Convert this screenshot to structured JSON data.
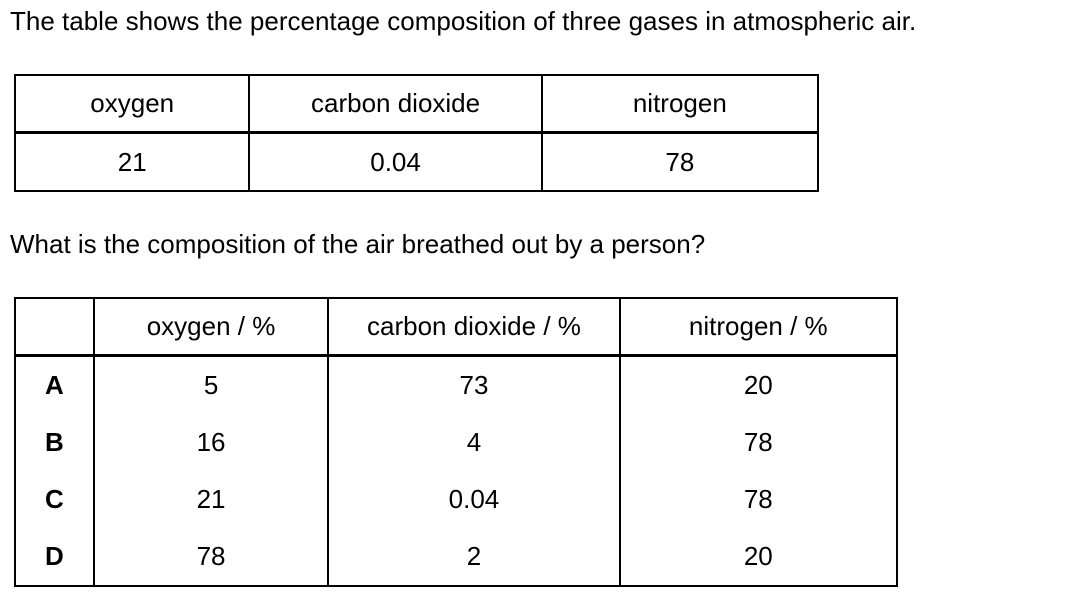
{
  "intro_text": "The table shows the percentage composition of three gases in atmospheric air.",
  "table1": {
    "headers": [
      "oxygen",
      "carbon dioxide",
      "nitrogen"
    ],
    "values": [
      "21",
      "0.04",
      "78"
    ]
  },
  "question_text": "What is the composition of the air breathed out by a person?",
  "table2": {
    "headers": [
      "",
      "oxygen / %",
      "carbon dioxide / %",
      "nitrogen / %"
    ],
    "rows": [
      {
        "option": "A",
        "oxygen": "5",
        "carbon_dioxide": "73",
        "nitrogen": "20"
      },
      {
        "option": "B",
        "oxygen": "16",
        "carbon_dioxide": "4",
        "nitrogen": "78"
      },
      {
        "option": "C",
        "oxygen": "21",
        "carbon_dioxide": "0.04",
        "nitrogen": "78"
      },
      {
        "option": "D",
        "oxygen": "78",
        "carbon_dioxide": "2",
        "nitrogen": "20"
      }
    ]
  }
}
